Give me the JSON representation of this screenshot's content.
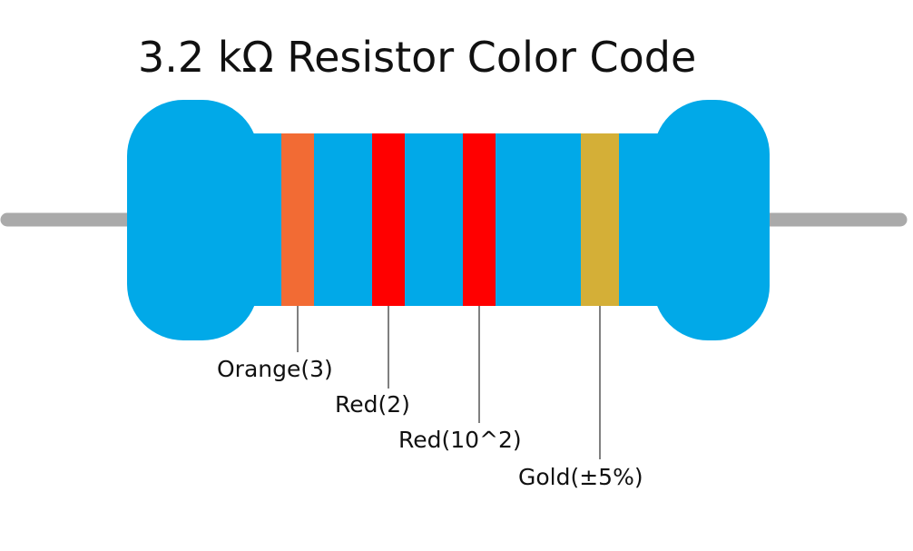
{
  "title": "3.2 kΩ Resistor Color Code",
  "colors": {
    "body": "#01a9e8",
    "lead": "#aaaaaa",
    "leader_line": "#000000"
  },
  "bands": [
    {
      "label": "Orange(3)",
      "color": "#f26b34"
    },
    {
      "label": "Red(2)",
      "color": "#ff0000"
    },
    {
      "label": "Red(10^2)",
      "color": "#ff0000"
    },
    {
      "label": "Gold(±5%)",
      "color": "#d4af37"
    }
  ]
}
